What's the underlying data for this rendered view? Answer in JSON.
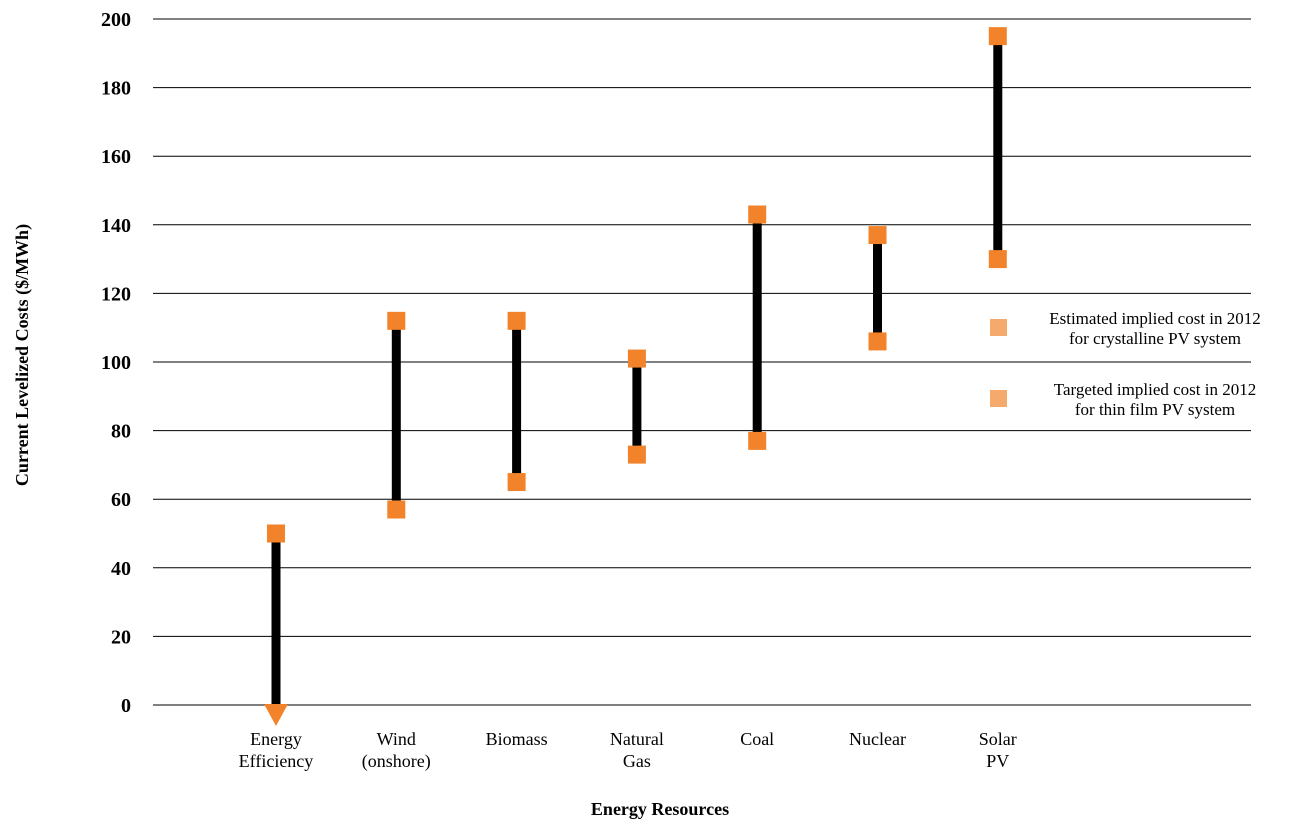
{
  "chart_data": {
    "type": "range",
    "xlabel": "Energy Resources",
    "ylabel": "Current Levelized Costs ($/MWh)",
    "ylim": [
      0,
      200
    ],
    "yticks": [
      "0",
      "20",
      "40",
      "60",
      "80",
      "100",
      "120",
      "140",
      "160",
      "180",
      "200"
    ],
    "grid": "horizontal",
    "categories": [
      {
        "label_lines": [
          "Energy",
          "Efficiency"
        ],
        "low": 0,
        "high": 50,
        "low_marker": "down-arrow"
      },
      {
        "label_lines": [
          "Wind",
          "(onshore)"
        ],
        "low": 57,
        "high": 112
      },
      {
        "label_lines": [
          "Biomass"
        ],
        "low": 65,
        "high": 112
      },
      {
        "label_lines": [
          "Natural",
          "Gas"
        ],
        "low": 73,
        "high": 101
      },
      {
        "label_lines": [
          "Coal"
        ],
        "low": 77,
        "high": 143
      },
      {
        "label_lines": [
          "Nuclear"
        ],
        "low": 106,
        "high": 137
      },
      {
        "label_lines": [
          "Solar",
          "PV"
        ],
        "low": 130,
        "high": 195
      }
    ],
    "legend": {
      "placement": "right",
      "items": [
        {
          "lines": [
            "Estimated implied cost in 2012",
            "for crystalline PV system"
          ],
          "color": "#f5a96b"
        },
        {
          "lines": [
            "Targeted implied cost in 2012",
            "for thin film PV system"
          ],
          "color": "#f5a96b"
        }
      ]
    },
    "colors": {
      "marker": "#f2832a",
      "bar": "#000000",
      "grid": "#000000",
      "legend_marker": "#f5a96b"
    }
  }
}
